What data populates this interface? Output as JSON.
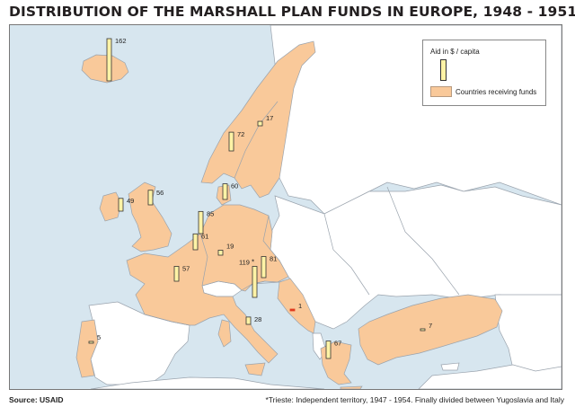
{
  "title": "DISTRIBUTION OF THE MARSHALL PLAN FUNDS IN EUROPE, 1948 - 1951",
  "source": "Source: USAID",
  "footnote": "*Trieste: Independent territory, 1947 - 1954. Finally divided between Yugoslavia and Italy",
  "legend": {
    "aid_label": "Aid in $ / capita",
    "countries_label": "Countries receiving funds"
  },
  "colors": {
    "sea": "#d7e6ef",
    "recipient": "#f9c99a",
    "non_recipient": "#ffffff",
    "border": "#9aa3ad",
    "bar_fill": "#fff3a6",
    "bar_stroke": "#333333",
    "negative_bar": "#e03a1e"
  },
  "aid_per_capita": [
    {
      "place": "Iceland",
      "value": 162,
      "label": "162"
    },
    {
      "place": "Sweden",
      "value": 17,
      "label": "17"
    },
    {
      "place": "Norway",
      "value": 72,
      "label": "72"
    },
    {
      "place": "Denmark",
      "value": 60,
      "label": "60"
    },
    {
      "place": "Ireland",
      "value": 49,
      "label": "49"
    },
    {
      "place": "United Kingdom",
      "value": 56,
      "label": "56"
    },
    {
      "place": "Netherlands",
      "value": 85,
      "label": "85"
    },
    {
      "place": "Belgium-Luxembourg",
      "value": 61,
      "label": "61"
    },
    {
      "place": "West Germany",
      "value": 19,
      "label": "19"
    },
    {
      "place": "France",
      "value": 57,
      "label": "57"
    },
    {
      "place": "Trieste",
      "value": 119,
      "label": "119",
      "marker": "*"
    },
    {
      "place": "Austria",
      "value": 81,
      "label": "81"
    },
    {
      "place": "Italy",
      "value": 28,
      "label": "28"
    },
    {
      "place": "Yugoslavia",
      "value": 1,
      "label": "1"
    },
    {
      "place": "Portugal",
      "value": 5,
      "label": "5"
    },
    {
      "place": "Greece",
      "value": 67,
      "label": "67"
    },
    {
      "place": "Turkey",
      "value": 7,
      "label": "7"
    }
  ]
}
